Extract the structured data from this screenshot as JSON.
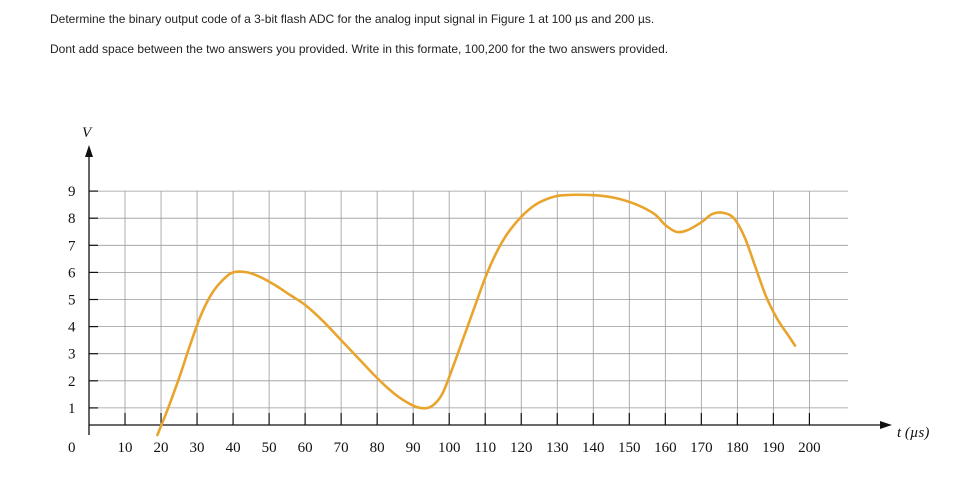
{
  "question": {
    "line1": "Determine the binary output code of a  3-bit flash ADC  for the analog input signal in Figure 1 at 100 µs and 200 µs.",
    "line2": "Dont add space between the two answers you provided. Write in this formate, 100,200 for the two answers provided."
  },
  "chart_data": {
    "type": "line",
    "title": "",
    "xlabel": "t (µs)",
    "ylabel": "V",
    "origin_label": "0",
    "x_ticks": [
      10,
      20,
      30,
      40,
      50,
      60,
      70,
      80,
      90,
      100,
      110,
      120,
      130,
      140,
      150,
      160,
      170,
      180,
      190,
      200
    ],
    "y_ticks": [
      1,
      2,
      3,
      4,
      5,
      6,
      7,
      8,
      9
    ],
    "xlim": [
      0,
      210
    ],
    "ylim": [
      0,
      9.5
    ],
    "grid": true,
    "line_color": "#e8a42c",
    "series": [
      {
        "name": "",
        "points": [
          [
            19,
            0
          ],
          [
            22,
            1
          ],
          [
            25,
            2.1
          ],
          [
            28,
            3.3
          ],
          [
            31,
            4.4
          ],
          [
            34,
            5.2
          ],
          [
            37,
            5.7
          ],
          [
            40,
            6.0
          ],
          [
            44,
            6.0
          ],
          [
            48,
            5.8
          ],
          [
            52,
            5.5
          ],
          [
            56,
            5.15
          ],
          [
            60,
            4.8
          ],
          [
            65,
            4.2
          ],
          [
            70,
            3.5
          ],
          [
            75,
            2.8
          ],
          [
            80,
            2.1
          ],
          [
            85,
            1.5
          ],
          [
            89,
            1.15
          ],
          [
            92,
            1.0
          ],
          [
            95,
            1.05
          ],
          [
            98,
            1.5
          ],
          [
            101,
            2.5
          ],
          [
            104,
            3.6
          ],
          [
            107,
            4.7
          ],
          [
            110,
            5.8
          ],
          [
            113,
            6.7
          ],
          [
            116,
            7.4
          ],
          [
            120,
            8.05
          ],
          [
            124,
            8.5
          ],
          [
            128,
            8.75
          ],
          [
            132,
            8.85
          ],
          [
            140,
            8.85
          ],
          [
            146,
            8.75
          ],
          [
            152,
            8.5
          ],
          [
            157,
            8.15
          ],
          [
            160,
            7.75
          ],
          [
            163,
            7.5
          ],
          [
            166,
            7.55
          ],
          [
            170,
            7.85
          ],
          [
            173,
            8.15
          ],
          [
            176,
            8.2
          ],
          [
            179,
            8.0
          ],
          [
            182,
            7.3
          ],
          [
            185,
            6.2
          ],
          [
            188,
            5.1
          ],
          [
            191,
            4.3
          ],
          [
            194,
            3.7
          ],
          [
            196,
            3.3
          ]
        ]
      }
    ]
  }
}
